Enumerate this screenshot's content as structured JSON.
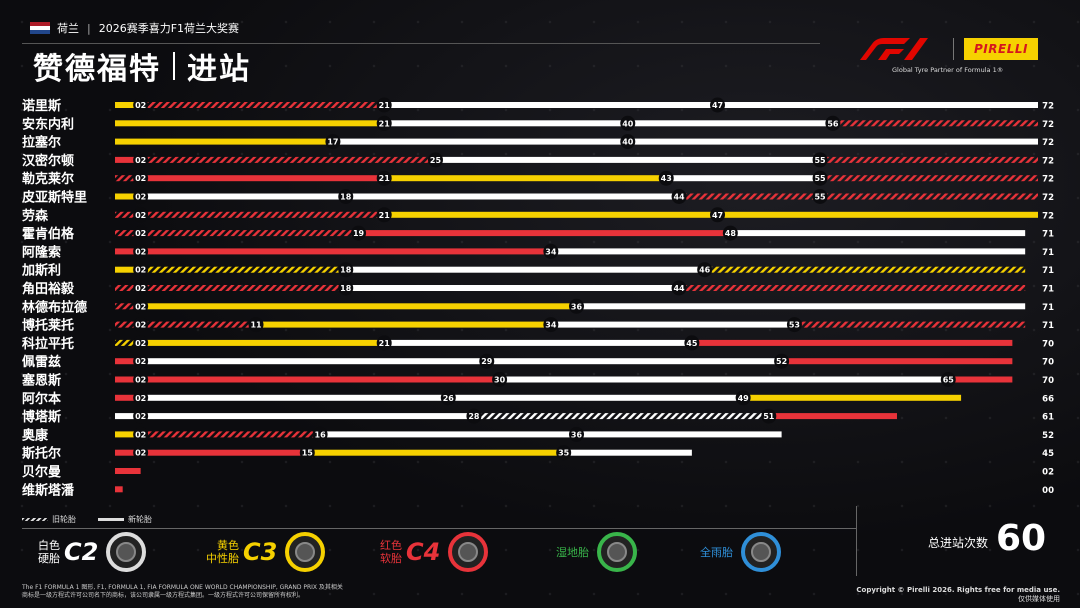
{
  "header": {
    "country": "荷兰",
    "event": "2026赛季喜力F1荷兰大奖赛",
    "title_main": "赞德福特",
    "title_sub": "进站",
    "tagline": "Global Tyre Partner of Formula 1®",
    "pirelli_label": "PIRELLI",
    "flag_colors": [
      "#ae1c28",
      "#ffffff",
      "#21468b"
    ]
  },
  "colors": {
    "hard": "#ffffff",
    "medium": "#f6d100",
    "soft": "#e8333a",
    "background": "#0c0c0f"
  },
  "legend": {
    "used_label": "旧轮胎",
    "new_label": "新轮胎",
    "tyres": [
      {
        "sub1": "白色",
        "sub2": "硬胎",
        "code": "C2",
        "color": "#ffffff",
        "icon": "hard-tyre-icon"
      },
      {
        "sub1": "黄色",
        "sub2": "中性胎",
        "code": "C3",
        "color": "#f6d100",
        "icon": "medium-tyre-icon"
      },
      {
        "sub1": "红色",
        "sub2": "软胎",
        "code": "C4",
        "color": "#e8333a",
        "icon": "soft-tyre-icon"
      },
      {
        "name": "湿地胎",
        "color": "#39b54a",
        "icon": "intermediate-tyre-icon"
      },
      {
        "name": "全雨胎",
        "color": "#2f8fd8",
        "icon": "wet-tyre-icon"
      }
    ]
  },
  "total": {
    "label": "总进站次数",
    "value": "60"
  },
  "footer": {
    "left_line1": "The F1 FORMULA 1 图形, F1, FORMULA 1, FIA FORMULA ONE WORLD CHAMPIONSHIP, GRAND PRIX 及其相关",
    "left_line2": "商标是一级方程式许可公司名下的商标，该公司隶属一级方程式集团。一级方程式许可公司保留所有权利。",
    "right_line1": "Copyright © Pirelli 2026. Rights free for media use.",
    "right_line2": "仅供媒体使用"
  },
  "chart_data": {
    "type": "bar",
    "orientation": "horizontal",
    "x_range": [
      0,
      72
    ],
    "compounds": {
      "H": "hard",
      "M": "medium",
      "S": "soft"
    },
    "drivers": [
      {
        "name": "诺里斯",
        "finish": "72",
        "stints": [
          {
            "c": "M",
            "s": 0,
            "e": 2,
            "used": false
          },
          {
            "c": "S",
            "s": 2,
            "e": 21,
            "used": true
          },
          {
            "c": "H",
            "s": 21,
            "e": 47,
            "used": false
          },
          {
            "c": "H",
            "s": 47,
            "e": 72,
            "used": false
          }
        ],
        "labels": [
          "02",
          "21",
          "47",
          "72"
        ]
      },
      {
        "name": "安东内利",
        "finish": "72",
        "stints": [
          {
            "c": "M",
            "s": 0,
            "e": 21,
            "used": false
          },
          {
            "c": "H",
            "s": 21,
            "e": 40,
            "used": false
          },
          {
            "c": "H",
            "s": 40,
            "e": 56,
            "used": false
          },
          {
            "c": "S",
            "s": 56,
            "e": 72,
            "used": true
          }
        ],
        "labels": [
          "21",
          "40",
          "56",
          "72"
        ]
      },
      {
        "name": "拉塞尔",
        "finish": "72",
        "stints": [
          {
            "c": "M",
            "s": 0,
            "e": 17,
            "used": false
          },
          {
            "c": "H",
            "s": 17,
            "e": 40,
            "used": false
          },
          {
            "c": "H",
            "s": 40,
            "e": 72,
            "used": false
          }
        ],
        "labels": [
          "17",
          "40",
          "72"
        ]
      },
      {
        "name": "汉密尔顿",
        "finish": "72",
        "stints": [
          {
            "c": "S",
            "s": 0,
            "e": 2,
            "used": false
          },
          {
            "c": "S",
            "s": 2,
            "e": 25,
            "used": true
          },
          {
            "c": "H",
            "s": 25,
            "e": 55,
            "used": false
          },
          {
            "c": "S",
            "s": 55,
            "e": 72,
            "used": true
          }
        ],
        "labels": [
          "02",
          "25",
          "55",
          "72"
        ]
      },
      {
        "name": "勒克莱尔",
        "finish": "72",
        "stints": [
          {
            "c": "S",
            "s": 0,
            "e": 2,
            "used": true
          },
          {
            "c": "S",
            "s": 2,
            "e": 21,
            "used": false
          },
          {
            "c": "M",
            "s": 21,
            "e": 43,
            "used": false
          },
          {
            "c": "H",
            "s": 43,
            "e": 55,
            "used": false
          },
          {
            "c": "S",
            "s": 55,
            "e": 72,
            "used": true
          }
        ],
        "labels": [
          "02",
          "21",
          "43",
          "55",
          "72"
        ]
      },
      {
        "name": "皮亚斯特里",
        "finish": "72",
        "stints": [
          {
            "c": "M",
            "s": 0,
            "e": 2,
            "used": false
          },
          {
            "c": "H",
            "s": 2,
            "e": 18,
            "used": false
          },
          {
            "c": "H",
            "s": 18,
            "e": 44,
            "used": false
          },
          {
            "c": "S",
            "s": 44,
            "e": 55,
            "used": true
          },
          {
            "c": "S",
            "s": 55,
            "e": 72,
            "used": true
          }
        ],
        "labels": [
          "02",
          "18",
          "44",
          "55",
          "72"
        ]
      },
      {
        "name": "劳森",
        "finish": "72",
        "stints": [
          {
            "c": "S",
            "s": 0,
            "e": 2,
            "used": true
          },
          {
            "c": "S",
            "s": 2,
            "e": 21,
            "used": true
          },
          {
            "c": "M",
            "s": 21,
            "e": 47,
            "used": false
          },
          {
            "c": "M",
            "s": 47,
            "e": 72,
            "used": false
          }
        ],
        "labels": [
          "02",
          "21",
          "47",
          "72"
        ]
      },
      {
        "name": "霍肯伯格",
        "finish": "71",
        "stints": [
          {
            "c": "S",
            "s": 0,
            "e": 2,
            "used": true
          },
          {
            "c": "S",
            "s": 2,
            "e": 19,
            "used": true
          },
          {
            "c": "S",
            "s": 19,
            "e": 48,
            "used": false
          },
          {
            "c": "H",
            "s": 48,
            "e": 71,
            "used": false
          }
        ],
        "labels": [
          "02",
          "19",
          "48",
          "71"
        ]
      },
      {
        "name": "阿隆索",
        "finish": "71",
        "stints": [
          {
            "c": "S",
            "s": 0,
            "e": 2,
            "used": false
          },
          {
            "c": "S",
            "s": 2,
            "e": 34,
            "used": false
          },
          {
            "c": "H",
            "s": 34,
            "e": 71,
            "used": false
          }
        ],
        "labels": [
          "02",
          "34",
          "71"
        ]
      },
      {
        "name": "加斯利",
        "finish": "71",
        "stints": [
          {
            "c": "M",
            "s": 0,
            "e": 2,
            "used": false
          },
          {
            "c": "M",
            "s": 2,
            "e": 18,
            "used": true
          },
          {
            "c": "H",
            "s": 18,
            "e": 46,
            "used": false
          },
          {
            "c": "M",
            "s": 46,
            "e": 71,
            "used": true
          }
        ],
        "labels": [
          "02",
          "18",
          "46",
          "71"
        ]
      },
      {
        "name": "角田裕毅",
        "finish": "71",
        "stints": [
          {
            "c": "S",
            "s": 0,
            "e": 2,
            "used": true
          },
          {
            "c": "S",
            "s": 2,
            "e": 18,
            "used": true
          },
          {
            "c": "H",
            "s": 18,
            "e": 44,
            "used": false
          },
          {
            "c": "S",
            "s": 44,
            "e": 71,
            "used": true
          }
        ],
        "labels": [
          "02",
          "18",
          "44",
          "71"
        ]
      },
      {
        "name": "林德布拉德",
        "finish": "71",
        "stints": [
          {
            "c": "S",
            "s": 0,
            "e": 2,
            "used": true
          },
          {
            "c": "M",
            "s": 2,
            "e": 36,
            "used": false
          },
          {
            "c": "H",
            "s": 36,
            "e": 71,
            "used": false
          }
        ],
        "labels": [
          "02",
          "36",
          "71"
        ]
      },
      {
        "name": "博托莱托",
        "finish": "71",
        "stints": [
          {
            "c": "S",
            "s": 0,
            "e": 2,
            "used": true
          },
          {
            "c": "S",
            "s": 2,
            "e": 11,
            "used": true
          },
          {
            "c": "M",
            "s": 11,
            "e": 34,
            "used": false
          },
          {
            "c": "H",
            "s": 34,
            "e": 53,
            "used": false
          },
          {
            "c": "S",
            "s": 53,
            "e": 71,
            "used": true
          }
        ],
        "labels": [
          "02",
          "11",
          "34",
          "53",
          "71"
        ]
      },
      {
        "name": "科拉平托",
        "finish": "70",
        "stints": [
          {
            "c": "M",
            "s": 0,
            "e": 2,
            "used": true
          },
          {
            "c": "M",
            "s": 2,
            "e": 21,
            "used": false
          },
          {
            "c": "H",
            "s": 21,
            "e": 45,
            "used": false
          },
          {
            "c": "S",
            "s": 45,
            "e": 70,
            "used": false
          }
        ],
        "labels": [
          "02",
          "21",
          "45",
          "70"
        ]
      },
      {
        "name": "佩雷兹",
        "finish": "70",
        "stints": [
          {
            "c": "S",
            "s": 0,
            "e": 2,
            "used": false
          },
          {
            "c": "H",
            "s": 2,
            "e": 29,
            "used": false
          },
          {
            "c": "H",
            "s": 29,
            "e": 52,
            "used": false
          },
          {
            "c": "S",
            "s": 52,
            "e": 70,
            "used": false
          }
        ],
        "labels": [
          "02",
          "29",
          "52",
          "70"
        ]
      },
      {
        "name": "塞恩斯",
        "finish": "70",
        "stints": [
          {
            "c": "S",
            "s": 0,
            "e": 2,
            "used": false
          },
          {
            "c": "S",
            "s": 2,
            "e": 30,
            "used": false
          },
          {
            "c": "H",
            "s": 30,
            "e": 65,
            "used": false
          },
          {
            "c": "S",
            "s": 65,
            "e": 70,
            "used": false
          }
        ],
        "labels": [
          "02",
          "30",
          "65",
          "70"
        ]
      },
      {
        "name": "阿尔本",
        "finish": "66",
        "stints": [
          {
            "c": "S",
            "s": 0,
            "e": 2,
            "used": false
          },
          {
            "c": "H",
            "s": 2,
            "e": 26,
            "used": false
          },
          {
            "c": "H",
            "s": 26,
            "e": 49,
            "used": false
          },
          {
            "c": "M",
            "s": 49,
            "e": 66,
            "used": false
          }
        ],
        "labels": [
          "02",
          "26",
          "49",
          "66"
        ]
      },
      {
        "name": "博塔斯",
        "finish": "61",
        "stints": [
          {
            "c": "H",
            "s": 0,
            "e": 2,
            "used": false
          },
          {
            "c": "H",
            "s": 2,
            "e": 28,
            "used": false
          },
          {
            "c": "H",
            "s": 28,
            "e": 51,
            "used": true
          },
          {
            "c": "S",
            "s": 51,
            "e": 61,
            "used": false
          }
        ],
        "labels": [
          "02",
          "28",
          "51",
          "61"
        ]
      },
      {
        "name": "奥康",
        "finish": "52",
        "stints": [
          {
            "c": "M",
            "s": 0,
            "e": 2,
            "used": false
          },
          {
            "c": "S",
            "s": 2,
            "e": 16,
            "used": true
          },
          {
            "c": "H",
            "s": 16,
            "e": 36,
            "used": false
          },
          {
            "c": "H",
            "s": 36,
            "e": 52,
            "used": false
          }
        ],
        "labels": [
          "02",
          "16",
          "36",
          "52"
        ]
      },
      {
        "name": "斯托尔",
        "finish": "45",
        "stints": [
          {
            "c": "S",
            "s": 0,
            "e": 2,
            "used": false
          },
          {
            "c": "S",
            "s": 2,
            "e": 15,
            "used": false
          },
          {
            "c": "M",
            "s": 15,
            "e": 35,
            "used": false
          },
          {
            "c": "H",
            "s": 35,
            "e": 45,
            "used": false
          }
        ],
        "labels": [
          "02",
          "15",
          "35",
          "45"
        ]
      },
      {
        "name": "贝尔曼",
        "finish": "02",
        "stints": [
          {
            "c": "S",
            "s": 0,
            "e": 2,
            "used": false
          }
        ],
        "labels": []
      },
      {
        "name": "维斯塔潘",
        "finish": "00",
        "stints": [
          {
            "c": "S",
            "s": 0,
            "e": 0.6,
            "used": false
          }
        ],
        "labels": []
      }
    ]
  }
}
